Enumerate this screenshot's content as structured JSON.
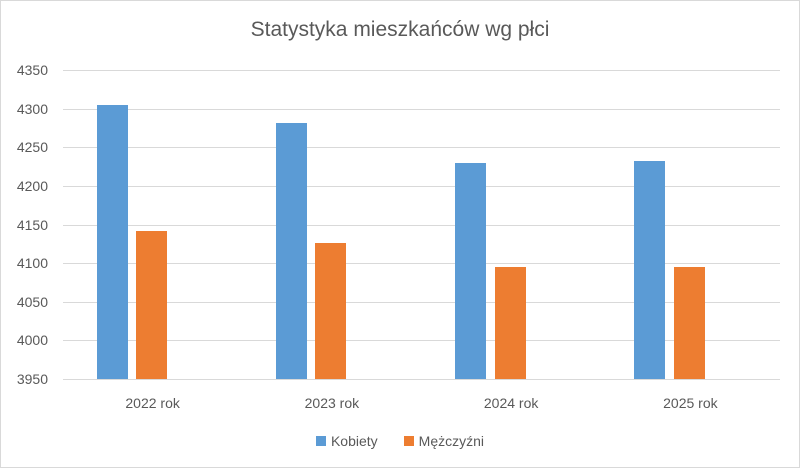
{
  "chart_data": {
    "type": "bar",
    "title": "Statystyka mieszkańców wg płci",
    "categories": [
      "2022 rok",
      "2023 rok",
      "2024 rok",
      "2025 rok"
    ],
    "series": [
      {
        "name": "Kobiety",
        "color": "#5b9bd5",
        "values": [
          4305,
          4282,
          4230,
          4232
        ]
      },
      {
        "name": "Mężczyźni",
        "color": "#ed7d31",
        "values": [
          4141,
          4126,
          4095,
          4095
        ]
      }
    ],
    "ylim": [
      3950,
      4350
    ],
    "ytick_step": 50,
    "ytick_labels": [
      "4350",
      "4300",
      "4250",
      "4200",
      "4150",
      "4100",
      "4050",
      "4000",
      "3950"
    ],
    "grid": "horizontal",
    "legend_position": "bottom",
    "colors": {
      "text": "#595959",
      "gridline": "#d9d9d9",
      "background": "#ffffff",
      "border": "#d9d9d9"
    }
  }
}
